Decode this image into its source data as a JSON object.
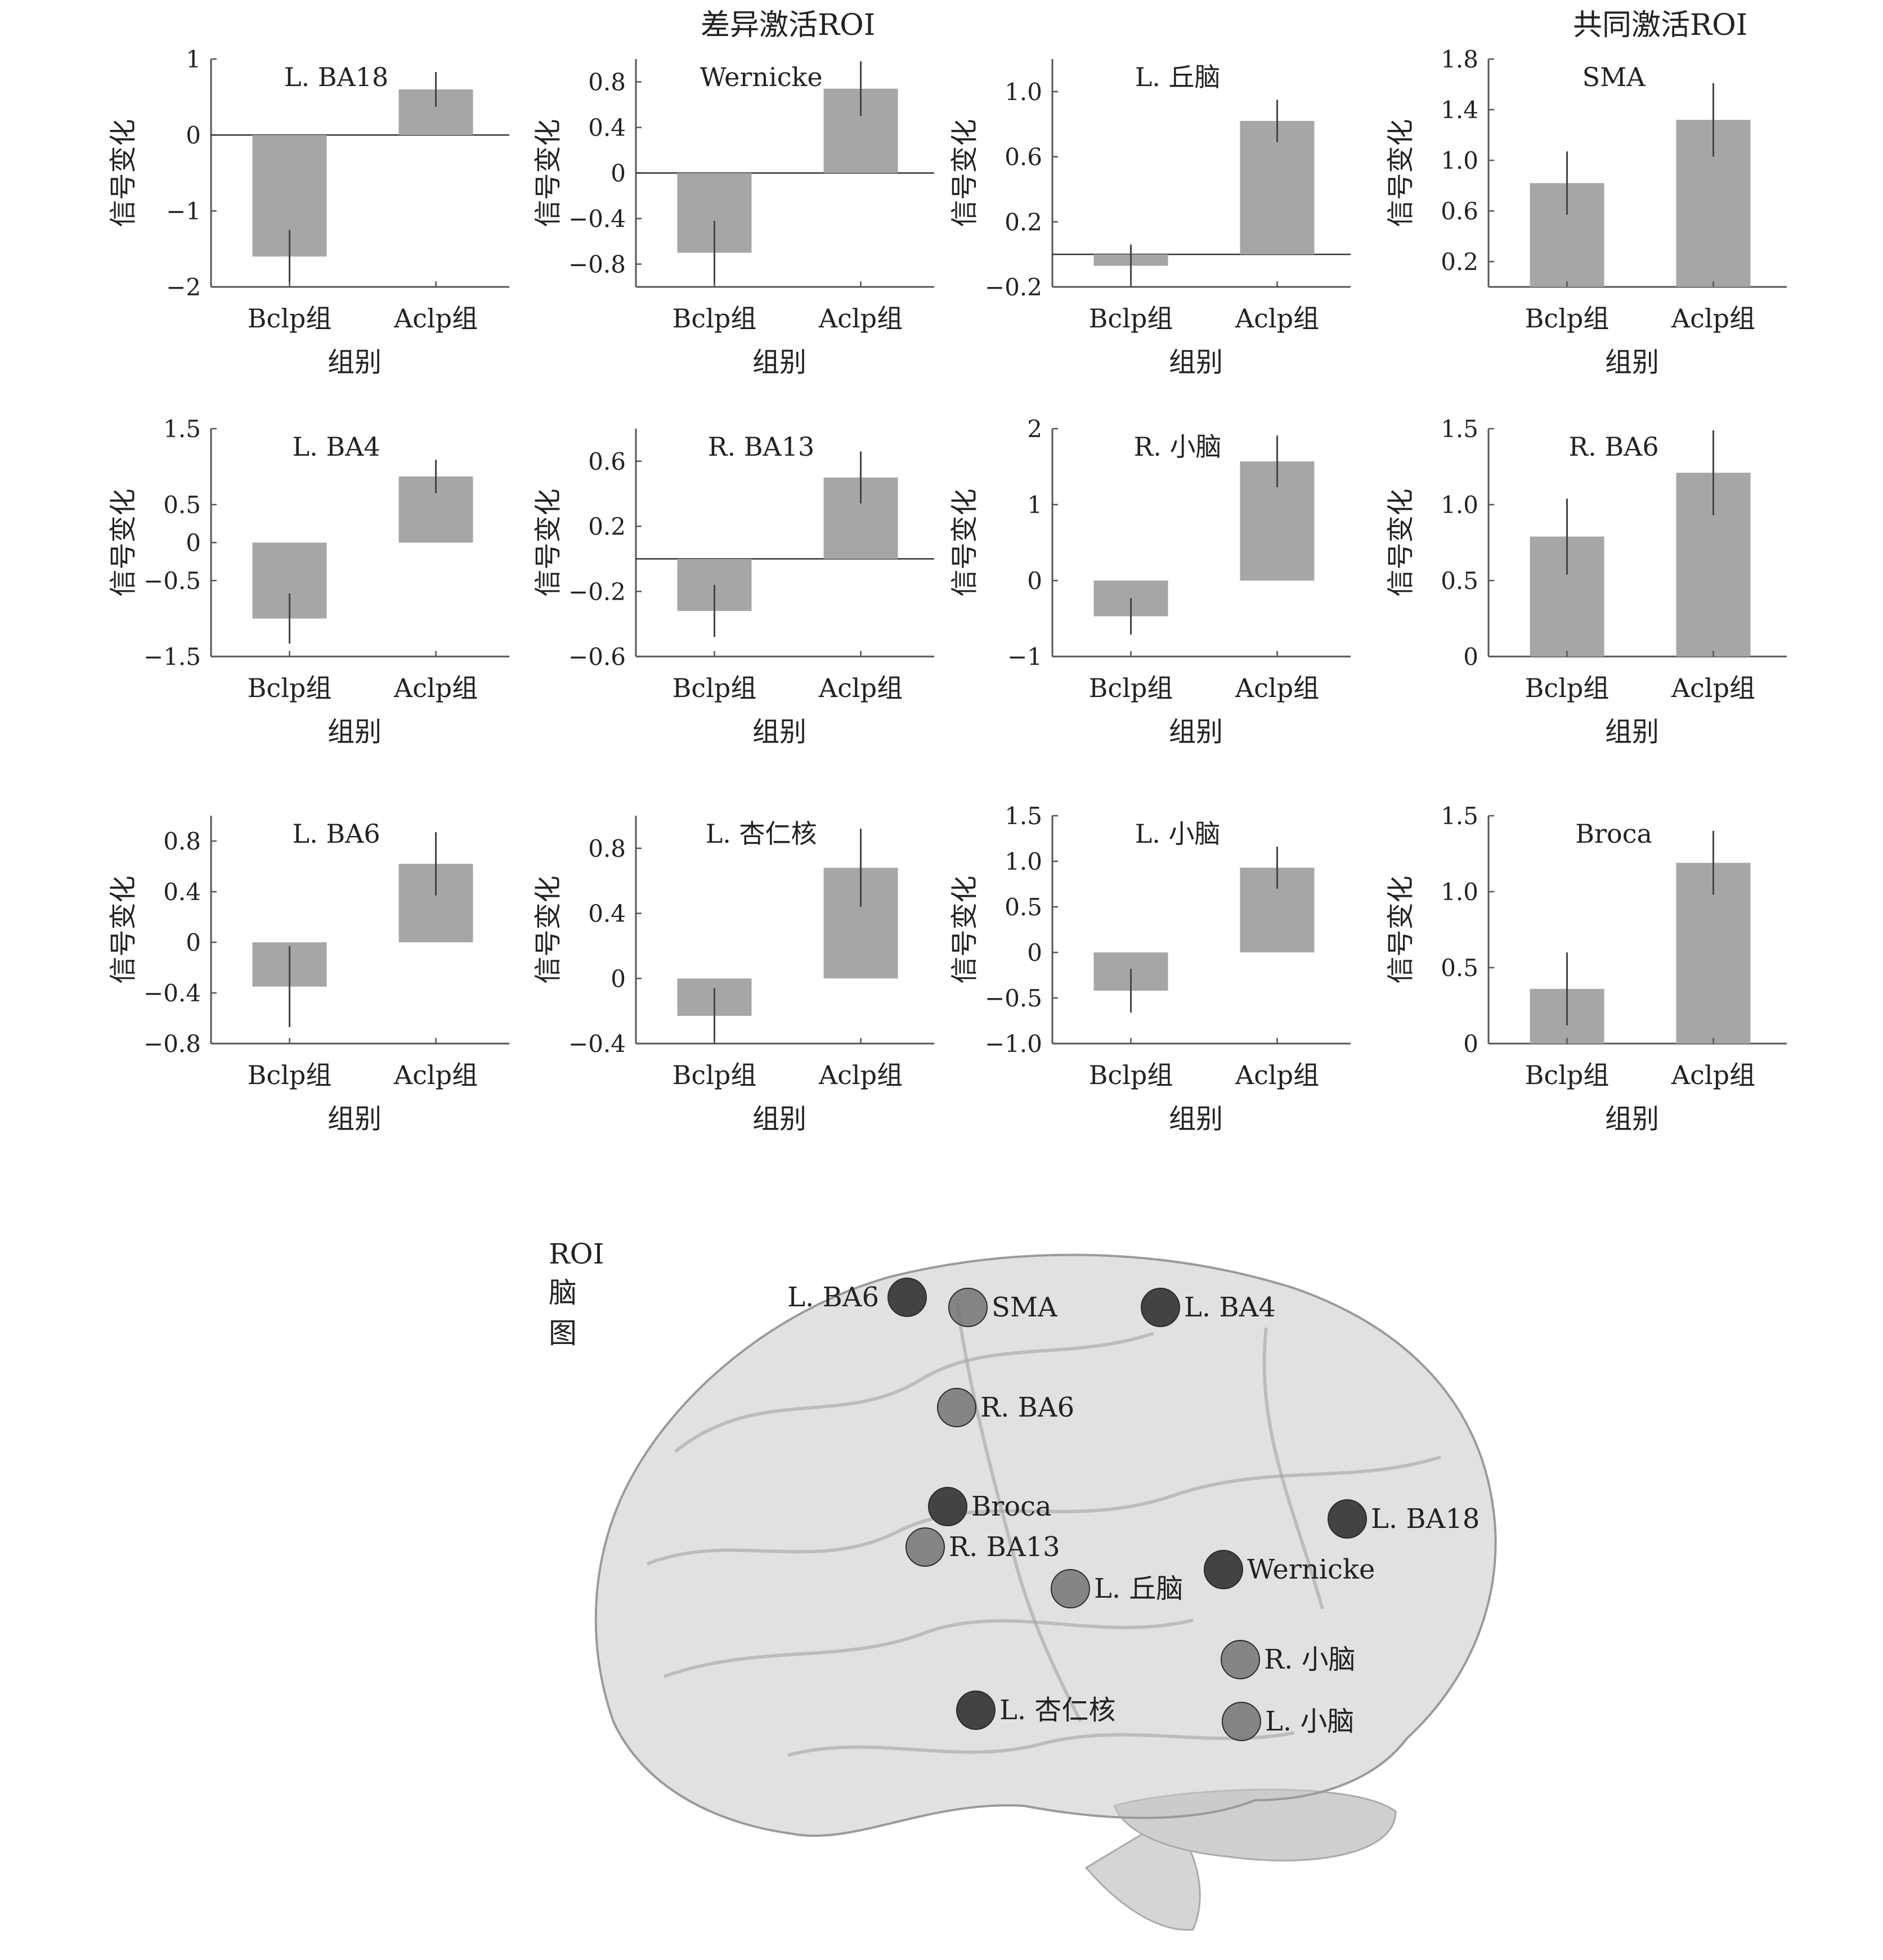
{
  "section_titles": {
    "differential": "差异激活ROI",
    "common": "共同激活ROI"
  },
  "brain": {
    "title": "ROI脑图",
    "markers": [
      {
        "label": "L. BA6",
        "shade": "dark"
      },
      {
        "label": "SMA",
        "shade": "light"
      },
      {
        "label": "L. BA4",
        "shade": "dark"
      },
      {
        "label": "R. BA6",
        "shade": "light"
      },
      {
        "label": "Broca",
        "shade": "dark"
      },
      {
        "label": "R. BA13",
        "shade": "light"
      },
      {
        "label": "L. 丘脑",
        "shade": "light"
      },
      {
        "label": "Wernicke",
        "shade": "dark"
      },
      {
        "label": "L. BA18",
        "shade": "dark"
      },
      {
        "label": "R. 小脑",
        "shade": "light"
      },
      {
        "label": "L. 杏仁核",
        "shade": "dark"
      },
      {
        "label": "L. 小脑",
        "shade": "light"
      }
    ]
  },
  "colors": {
    "bar": "#a6a6a6",
    "axis": "#555555",
    "brain": "#c8c8c8"
  },
  "chart_data": [
    {
      "type": "bar",
      "title": "L. BA18",
      "xlabel": "组别",
      "ylabel": "信号变化",
      "categories": [
        "Bclp组",
        "Aclp组"
      ],
      "values": [
        -1.6,
        0.6
      ],
      "errors": [
        0.35,
        0.23
      ],
      "ylim": [
        -2,
        1
      ],
      "yticks": [
        -2,
        -1,
        0,
        1
      ],
      "yticklabels": [
        "−2",
        "−1",
        "0",
        "1"
      ],
      "zero_line": true
    },
    {
      "type": "bar",
      "title": "Wernicke",
      "xlabel": "组别",
      "ylabel": "信号变化",
      "categories": [
        "Bclp组",
        "Aclp组"
      ],
      "values": [
        -0.7,
        0.74
      ],
      "errors": [
        0.28,
        0.24
      ],
      "ylim": [
        -1.0,
        1.0
      ],
      "yticks": [
        -0.8,
        -0.4,
        0,
        0.4,
        0.8
      ],
      "yticklabels": [
        "−0.8",
        "−0.4",
        "0",
        "0.4",
        "0.8"
      ],
      "zero_line": true
    },
    {
      "type": "bar",
      "title": "L. 丘脑",
      "xlabel": "组别",
      "ylabel": "信号变化",
      "categories": [
        "Bclp组",
        "Aclp组"
      ],
      "values": [
        -0.07,
        0.82
      ],
      "errors": [
        0.13,
        0.13
      ],
      "ylim": [
        -0.2,
        1.2
      ],
      "yticks": [
        -0.2,
        0.2,
        0.6,
        1.0
      ],
      "yticklabels": [
        "−0.2",
        "0.2",
        "0.6",
        "1.0"
      ],
      "zero_line": true
    },
    {
      "type": "bar",
      "title": "SMA",
      "xlabel": "组别",
      "ylabel": "信号变化",
      "categories": [
        "Bclp组",
        "Aclp组"
      ],
      "values": [
        0.82,
        1.32
      ],
      "errors": [
        0.25,
        0.29
      ],
      "ylim": [
        0,
        1.8
      ],
      "yticks": [
        0.2,
        0.6,
        1.0,
        1.4,
        1.8
      ],
      "yticklabels": [
        "0.2",
        "0.6",
        "1.0",
        "1.4",
        "1.8"
      ],
      "zero_line": false
    },
    {
      "type": "bar",
      "title": "L. BA4",
      "xlabel": "组别",
      "ylabel": "信号变化",
      "categories": [
        "Bclp组",
        "Aclp组"
      ],
      "values": [
        -1.0,
        0.87
      ],
      "errors": [
        0.33,
        0.22
      ],
      "ylim": [
        -1.5,
        1.5
      ],
      "yticks": [
        -1.5,
        -0.5,
        0,
        0.5,
        1.5
      ],
      "yticklabels": [
        "−1.5",
        "−0.5",
        "0",
        "0.5",
        "1.5"
      ],
      "zero_line": false
    },
    {
      "type": "bar",
      "title": "R. BA13",
      "xlabel": "组别",
      "ylabel": "信号变化",
      "categories": [
        "Bclp组",
        "Aclp组"
      ],
      "values": [
        -0.32,
        0.5
      ],
      "errors": [
        0.16,
        0.16
      ],
      "ylim": [
        -0.6,
        0.8
      ],
      "yticks": [
        -0.6,
        -0.2,
        0.2,
        0.6
      ],
      "yticklabels": [
        "−0.6",
        "−0.2",
        "0.2",
        "0.6"
      ],
      "zero_line": true
    },
    {
      "type": "bar",
      "title": "R. 小脑",
      "xlabel": "组别",
      "ylabel": "信号变化",
      "categories": [
        "Bclp组",
        "Aclp组"
      ],
      "values": [
        -0.47,
        1.57
      ],
      "errors": [
        0.24,
        0.34
      ],
      "ylim": [
        -1,
        2
      ],
      "yticks": [
        -1,
        0,
        1,
        2
      ],
      "yticklabels": [
        "−1",
        "0",
        "1",
        "2"
      ],
      "zero_line": false
    },
    {
      "type": "bar",
      "title": "R. BA6",
      "xlabel": "组别",
      "ylabel": "信号变化",
      "categories": [
        "Bclp组",
        "Aclp组"
      ],
      "values": [
        0.79,
        1.21
      ],
      "errors": [
        0.25,
        0.28
      ],
      "ylim": [
        0,
        1.5
      ],
      "yticks": [
        0,
        0.5,
        1.0,
        1.5
      ],
      "yticklabels": [
        "0",
        "0.5",
        "1.0",
        "1.5"
      ],
      "zero_line": false
    },
    {
      "type": "bar",
      "title": "L. BA6",
      "xlabel": "组别",
      "ylabel": "信号变化",
      "categories": [
        "Bclp组",
        "Aclp组"
      ],
      "values": [
        -0.35,
        0.62
      ],
      "errors": [
        0.32,
        0.25
      ],
      "ylim": [
        -0.8,
        1.0
      ],
      "yticks": [
        -0.8,
        -0.4,
        0,
        0.4,
        0.8
      ],
      "yticklabels": [
        "−0.8",
        "−0.4",
        "0",
        "0.4",
        "0.8"
      ],
      "zero_line": false
    },
    {
      "type": "bar",
      "title": "L. 杏仁核",
      "xlabel": "组别",
      "ylabel": "信号变化",
      "categories": [
        "Bclp组",
        "Aclp组"
      ],
      "values": [
        -0.23,
        0.68
      ],
      "errors": [
        0.17,
        0.24
      ],
      "ylim": [
        -0.4,
        1.0
      ],
      "yticks": [
        -0.4,
        0,
        0.4,
        0.8
      ],
      "yticklabels": [
        "−0.4",
        "0",
        "0.4",
        "0.8"
      ],
      "zero_line": false
    },
    {
      "type": "bar",
      "title": "L. 小脑",
      "xlabel": "组别",
      "ylabel": "信号变化",
      "categories": [
        "Bclp组",
        "Aclp组"
      ],
      "values": [
        -0.42,
        0.93
      ],
      "errors": [
        0.24,
        0.23
      ],
      "ylim": [
        -1.0,
        1.5
      ],
      "yticks": [
        -1.0,
        -0.5,
        0,
        0.5,
        1.0,
        1.5
      ],
      "yticklabels": [
        "−1.0",
        "−0.5",
        "0",
        "0.5",
        "1.0",
        "1.5"
      ],
      "zero_line": false
    },
    {
      "type": "bar",
      "title": "Broca",
      "xlabel": "组别",
      "ylabel": "信号变化",
      "categories": [
        "Bclp组",
        "Aclp组"
      ],
      "values": [
        0.36,
        1.19
      ],
      "errors": [
        0.24,
        0.21
      ],
      "ylim": [
        0,
        1.5
      ],
      "yticks": [
        0,
        0.5,
        1.0,
        1.5
      ],
      "yticklabels": [
        "0",
        "0.5",
        "1.0",
        "1.5"
      ],
      "zero_line": false
    }
  ]
}
